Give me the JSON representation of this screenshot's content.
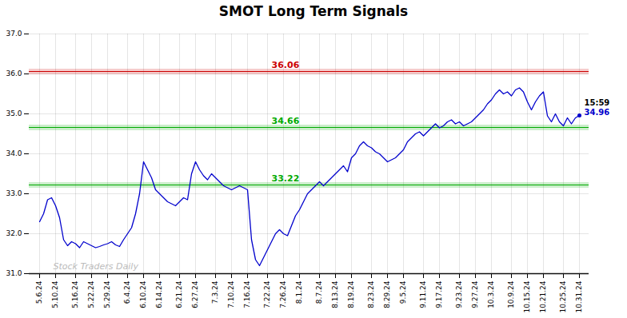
{
  "chart_data": {
    "type": "line",
    "title": "SMOT Long Term Signals",
    "categories": [
      "5.6.24",
      null,
      null,
      null,
      "5.10.24",
      null,
      null,
      null,
      null,
      "5.16.24",
      null,
      null,
      null,
      "5.22.24",
      null,
      null,
      null,
      "5.29.24",
      null,
      null,
      null,
      null,
      "6.4.24",
      null,
      null,
      null,
      "6.10.24",
      null,
      null,
      null,
      "6.14.24",
      null,
      null,
      null,
      null,
      "6.21.24",
      null,
      null,
      null,
      "6.27.24",
      null,
      null,
      null,
      null,
      "7.3.24",
      null,
      null,
      null,
      "7.10.24",
      null,
      null,
      null,
      "7.16.24",
      null,
      null,
      null,
      null,
      "7.22.24",
      null,
      null,
      null,
      "7.26.24",
      null,
      null,
      null,
      "8.1.24",
      null,
      null,
      null,
      null,
      "8.7.24",
      null,
      null,
      null,
      "8.13.24",
      null,
      null,
      null,
      "8.19.24",
      null,
      null,
      null,
      null,
      "8.23.24",
      null,
      null,
      null,
      "8.29.24",
      null,
      null,
      null,
      "9.5.24",
      null,
      null,
      null,
      null,
      "9.11.24",
      null,
      null,
      null,
      "9.17.24",
      null,
      null,
      null,
      null,
      "9.23.24",
      null,
      null,
      null,
      "9.27.24",
      null,
      null,
      null,
      "10.3.24",
      null,
      null,
      null,
      null,
      "10.9.24",
      null,
      null,
      null,
      "10.15.24",
      null,
      null,
      null,
      "10.21.24",
      null,
      null,
      null,
      null,
      "10.25.24",
      null,
      null,
      null,
      "10.31.24"
    ],
    "values": [
      32.3,
      32.5,
      32.85,
      32.9,
      32.7,
      32.4,
      31.85,
      31.7,
      31.8,
      31.75,
      31.65,
      31.8,
      31.75,
      31.7,
      31.65,
      31.68,
      31.72,
      31.75,
      31.8,
      31.72,
      31.68,
      31.85,
      32.0,
      32.15,
      32.5,
      33.0,
      33.8,
      33.6,
      33.4,
      33.1,
      33.0,
      32.9,
      32.8,
      32.75,
      32.7,
      32.8,
      32.9,
      32.85,
      33.5,
      33.8,
      33.6,
      33.45,
      33.35,
      33.5,
      33.4,
      33.3,
      33.2,
      33.15,
      33.1,
      33.15,
      33.2,
      33.15,
      33.1,
      31.85,
      31.35,
      31.2,
      31.4,
      31.6,
      31.8,
      32.0,
      32.1,
      32.0,
      31.95,
      32.2,
      32.45,
      32.6,
      32.8,
      33.0,
      33.1,
      33.2,
      33.3,
      33.2,
      33.3,
      33.4,
      33.5,
      33.6,
      33.7,
      33.55,
      33.9,
      34.0,
      34.2,
      34.3,
      34.2,
      34.15,
      34.05,
      34.0,
      33.9,
      33.8,
      33.85,
      33.9,
      34.0,
      34.1,
      34.3,
      34.4,
      34.5,
      34.55,
      34.45,
      34.55,
      34.65,
      34.75,
      34.65,
      34.7,
      34.8,
      34.85,
      34.75,
      34.8,
      34.7,
      34.75,
      34.8,
      34.9,
      35.0,
      35.1,
      35.25,
      35.35,
      35.5,
      35.6,
      35.5,
      35.55,
      35.45,
      35.6,
      35.65,
      35.55,
      35.3,
      35.1,
      35.3,
      35.45,
      35.55,
      34.95,
      34.8,
      35.0,
      34.8,
      34.7,
      34.9,
      34.75,
      34.9,
      34.96
    ],
    "color": "#0000cc",
    "hlines": [
      {
        "value": 36.06,
        "label": "36.06",
        "color": "#cc0000"
      },
      {
        "value": 34.66,
        "label": "34.66",
        "color": "#00aa00"
      },
      {
        "value": 33.22,
        "label": "33.22",
        "color": "#00aa00"
      }
    ],
    "last_point_labels": [
      "15:59",
      "34.96"
    ],
    "watermark": "Stock Traders Daily",
    "ylim": [
      31,
      37
    ],
    "yticks": [
      31,
      32,
      33,
      34,
      35,
      36,
      37
    ],
    "grid": true
  }
}
